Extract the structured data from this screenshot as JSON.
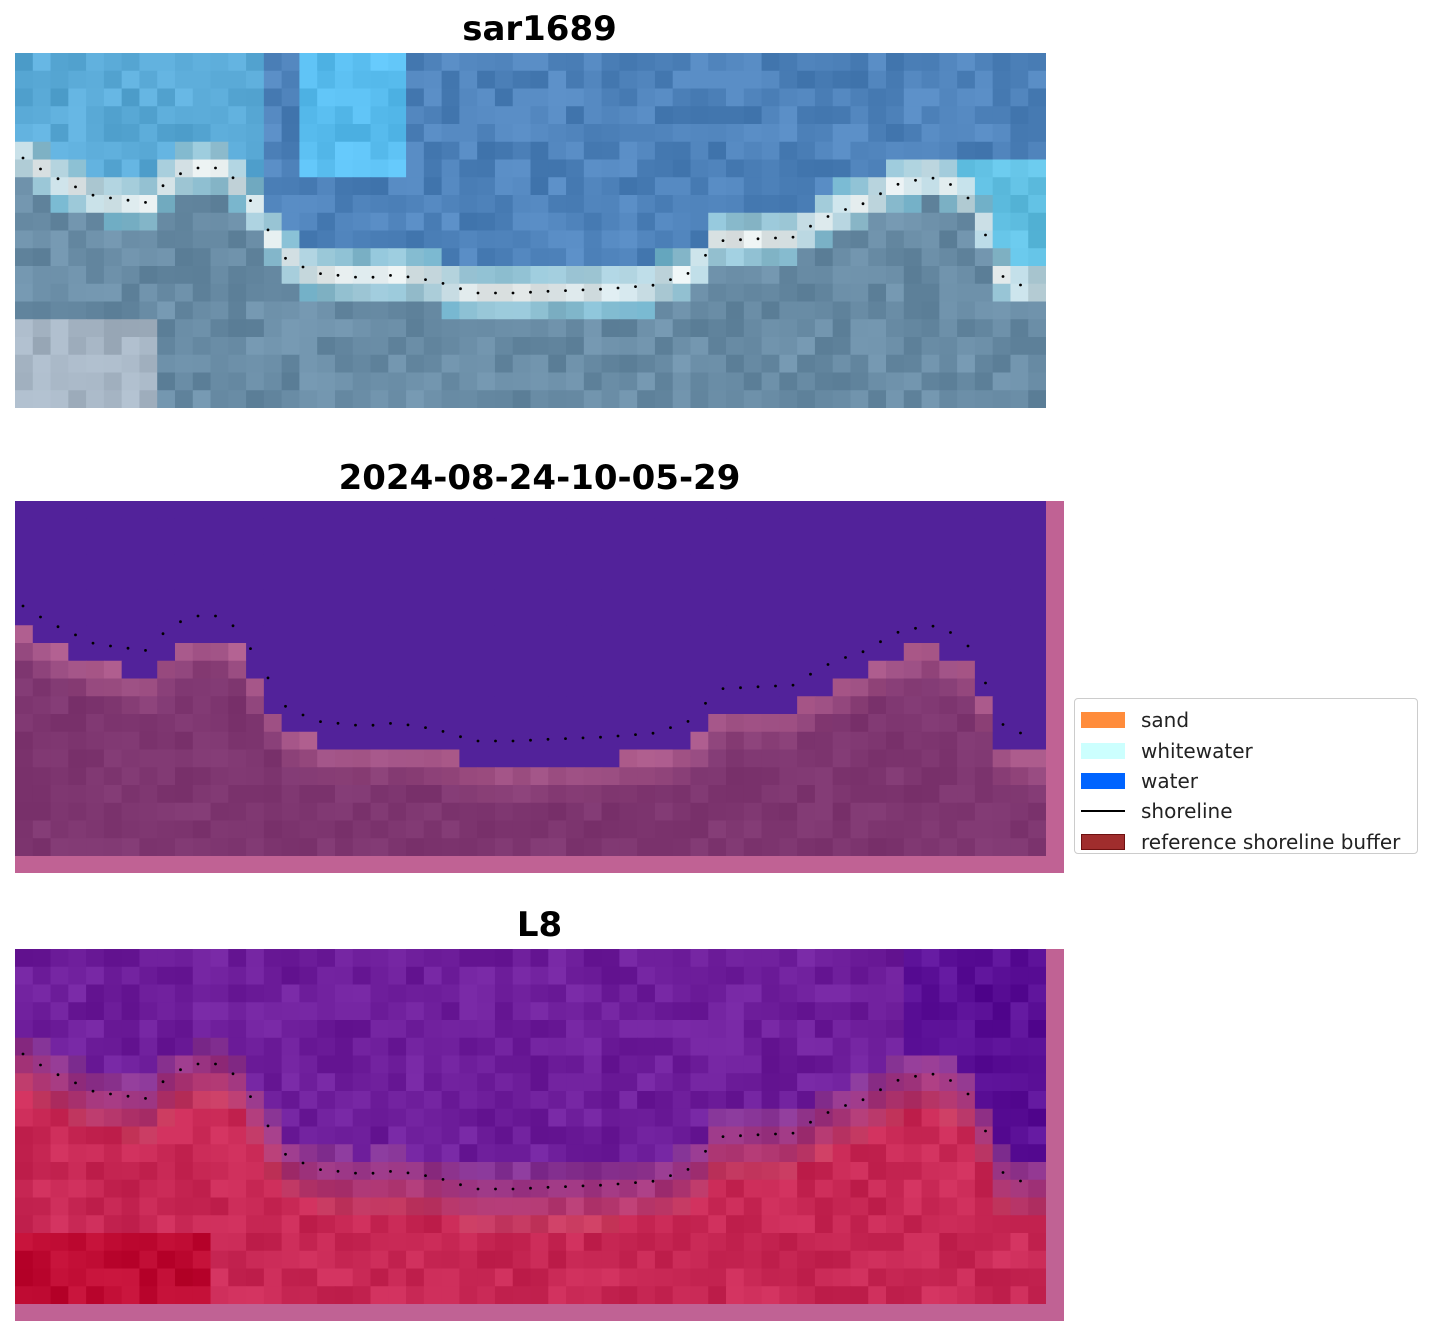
{
  "panels": [
    {
      "title": "sar1689"
    },
    {
      "title": "2024-08-24-10-05-29"
    },
    {
      "title": "L8"
    }
  ],
  "legend": {
    "items": [
      {
        "label": "sand",
        "color": "#ff8c3b",
        "kind": "patch"
      },
      {
        "label": "whitewater",
        "color": "#ccfffe",
        "kind": "patch"
      },
      {
        "label": "water",
        "color": "#0064ff",
        "kind": "patch"
      },
      {
        "label": "shoreline",
        "color": "#000000",
        "kind": "line"
      },
      {
        "label": "reference shoreline buffer",
        "color": "#a02d2d",
        "kind": "patch"
      }
    ]
  },
  "colors": {
    "class_water_overlay": "#52229a",
    "class_land_overlay": "#7e3670",
    "border_buffer": "#c06294",
    "l8_water": "#6a1d9c",
    "l8_land": "#c2224a"
  }
}
